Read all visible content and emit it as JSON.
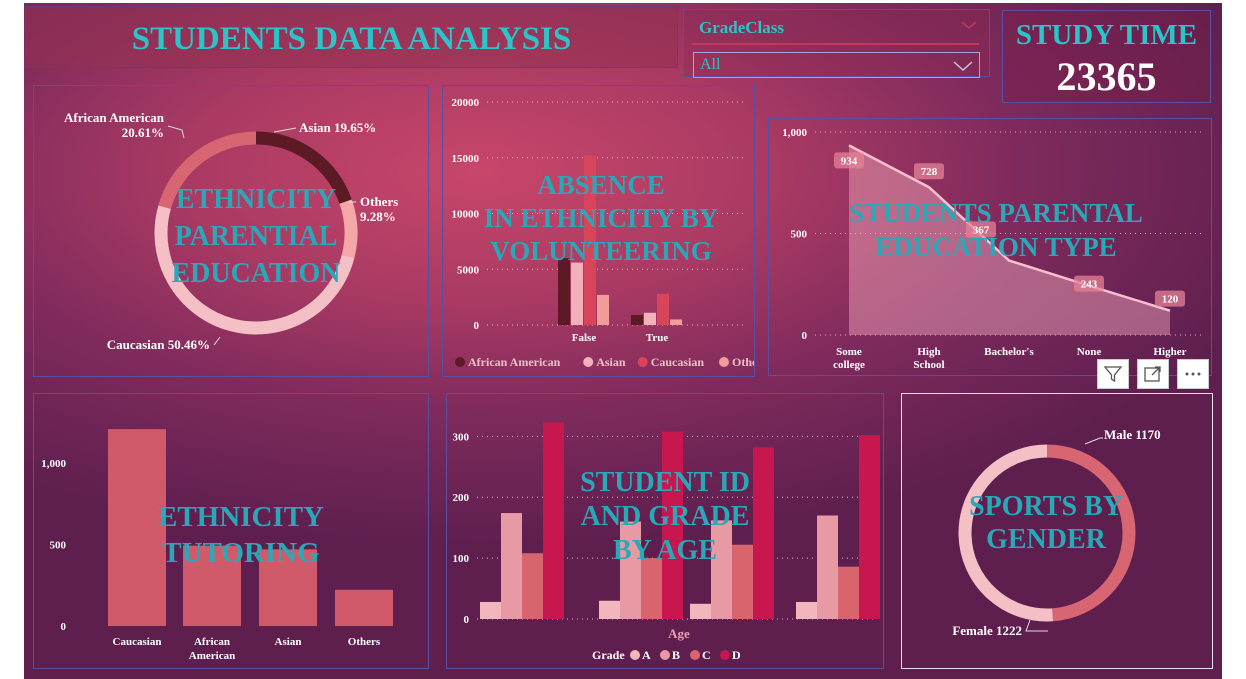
{
  "header": {
    "title": "STUDENTS DATA ANALYSIS"
  },
  "slicer": {
    "title": "GradeClass",
    "value": "All"
  },
  "kpi": {
    "label": "STUDY TIME",
    "value": "23365"
  },
  "colors": {
    "accent": "#2cc3c9",
    "african_american": "#5c1a24",
    "asian": "#f2b1ba",
    "caucasian": "#e89aa4",
    "others": "#f5a6a6"
  },
  "chart_data": [
    {
      "id": "ethnicity_donut",
      "type": "pie",
      "title": "ETHNICITY PARENTIAL EDUCATION",
      "title_lines": [
        "ETHNICITY",
        "PARENTIAL",
        "EDUCATION"
      ],
      "categories": [
        "Asian",
        "Others",
        "Caucasian",
        "African American"
      ],
      "values": [
        19.65,
        9.28,
        50.46,
        20.61
      ],
      "labels": [
        "Asian 19.65%",
        "Others 9.28%",
        "Caucasian 50.46%",
        "African American 20.61%"
      ],
      "label_lines": [
        [
          "Asian 19.65%"
        ],
        [
          "Others",
          "9.28%"
        ],
        [
          "Caucasian 50.46%"
        ],
        [
          "African American",
          "20.61%"
        ]
      ],
      "colors": [
        "#5c1a24",
        "#f5a6a6",
        "#f5c0c5",
        "#d86672"
      ]
    },
    {
      "id": "absence_volunteering",
      "type": "bar",
      "title": "ABSENCE IN ETHNICITY BY VOLUNTEERING",
      "title_lines": [
        "ABSENCE",
        "IN ETHNICITY BY",
        "VOLUNTEERING"
      ],
      "categories": [
        "False",
        "True"
      ],
      "series": [
        {
          "name": "African American",
          "values": [
            6000,
            900
          ],
          "color": "#5c1a24"
        },
        {
          "name": "Asian",
          "values": [
            5600,
            1100
          ],
          "color": "#f2b1ba"
        },
        {
          "name": "Caucasian",
          "values": [
            15200,
            2800
          ],
          "color": "#d8445a"
        },
        {
          "name": "Others",
          "values": [
            2700,
            500
          ],
          "color": "#f29b9b"
        }
      ],
      "ylim": [
        0,
        20000
      ],
      "yticks": [
        "0",
        "5000",
        "10000",
        "15000",
        "20000"
      ]
    },
    {
      "id": "parental_education",
      "type": "area",
      "title": "STUDENTS PARENTAL EDUCATION TYPE",
      "title_lines": [
        "STUDENTS PARENTAL",
        "EDUCATION TYPE"
      ],
      "categories": [
        "Some college",
        "High School",
        "Bachelor's",
        "None",
        "Higher"
      ],
      "category_lines": [
        [
          "Some",
          "college"
        ],
        [
          "High",
          "School"
        ],
        [
          "Bachelor's"
        ],
        [
          "None"
        ],
        [
          "Higher"
        ]
      ],
      "values": [
        934,
        728,
        367,
        243,
        120
      ],
      "ylim": [
        0,
        1000
      ],
      "yticks": [
        "0",
        "500",
        "1,000"
      ]
    },
    {
      "id": "ethnicity_tutoring",
      "type": "bar",
      "title": "ETHNICITY TUTORING",
      "title_lines": [
        "ETHNICITY",
        "TUTORING"
      ],
      "categories": [
        "Caucasian",
        "African American",
        "Asian",
        "Others"
      ],
      "category_lines": [
        [
          "Caucasian"
        ],
        [
          "African",
          "American"
        ],
        [
          "Asian"
        ],
        [
          "Others"
        ]
      ],
      "values": [
        1207,
        493,
        470,
        222
      ],
      "ylim": [
        0,
        1300
      ],
      "yticks": [
        "0",
        "500",
        "1,000"
      ]
    },
    {
      "id": "student_grade_age",
      "type": "bar",
      "title": "STUDENT ID AND GRADE BY AGE",
      "title_lines": [
        "STUDENT ID",
        "AND GRADE",
        "BY AGE"
      ],
      "xlabel": "Age",
      "categories": [
        "",
        "",
        "",
        ""
      ],
      "legend_title": "Grade",
      "series": [
        {
          "name": "A",
          "values": [
            28,
            30,
            25,
            28
          ],
          "color": "#f4b6bd"
        },
        {
          "name": "B",
          "values": [
            174,
            160,
            162,
            170
          ],
          "color": "#e89aa4"
        },
        {
          "name": "C",
          "values": [
            108,
            100,
            122,
            86
          ],
          "color": "#d8646e"
        },
        {
          "name": "D",
          "values": [
            323,
            308,
            282,
            302
          ],
          "color": "#c8174e"
        }
      ],
      "ylim": [
        0,
        340
      ],
      "yticks": [
        "0",
        "100",
        "200",
        "300"
      ]
    },
    {
      "id": "sports_gender",
      "type": "pie",
      "title": "SPORTS BY GENDER",
      "title_lines": [
        "SPORTS BY",
        "GENDER"
      ],
      "categories": [
        "Male",
        "Female"
      ],
      "values": [
        1170,
        1222
      ],
      "labels": [
        "Male 1170",
        "Female 1222"
      ],
      "colors": [
        "#d86672",
        "#f5c0c5"
      ]
    }
  ]
}
